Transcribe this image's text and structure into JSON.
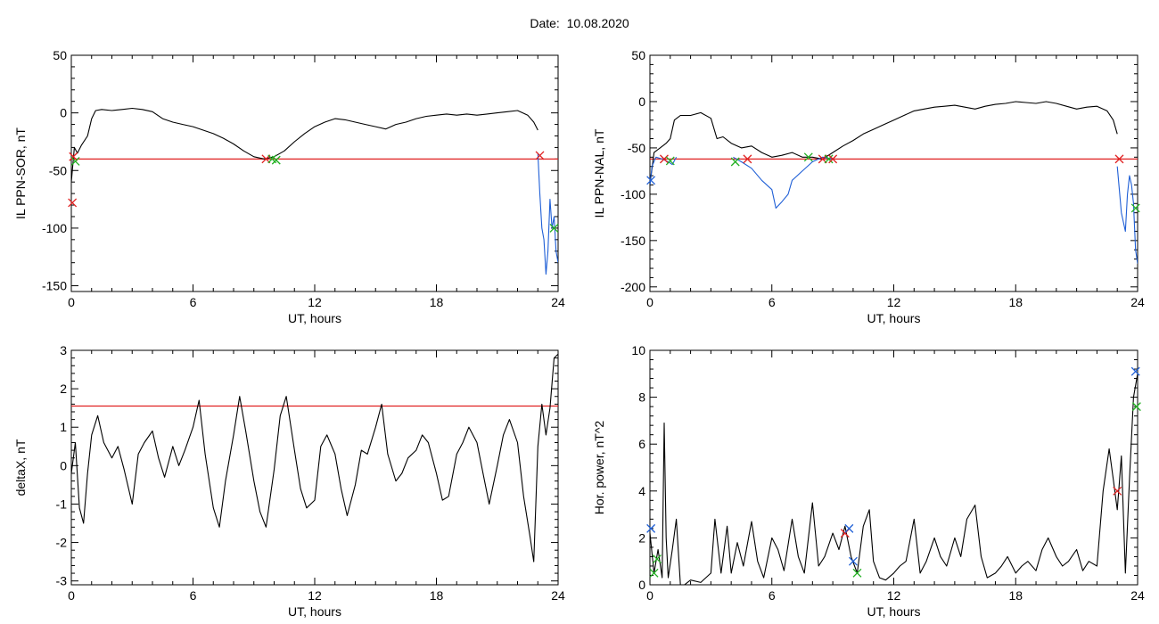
{
  "figure": {
    "title": "Date:  10.08.2020"
  },
  "colors": {
    "trace": "#000000",
    "highlight": "#1f5fd6",
    "threshold": "#e02020",
    "marker_red": "#e02020",
    "marker_green": "#22b022",
    "marker_blue": "#3050e0"
  },
  "chart_data": [
    {
      "type": "line",
      "xlabel": "UT, hours",
      "ylabel": "IL PPN-SOR, nT",
      "xlim": [
        0,
        24
      ],
      "ylim": [
        -155,
        50
      ],
      "xticks": [
        0,
        6,
        12,
        18,
        24
      ],
      "yticks": [
        50,
        0,
        -50,
        -100,
        -150
      ],
      "threshold": -40,
      "series": [
        {
          "color": "black",
          "x": [
            0,
            0.15,
            0.3,
            0.5,
            0.8,
            1,
            1.2,
            1.5,
            2,
            2.5,
            3,
            3.5,
            4,
            4.5,
            5,
            5.5,
            6,
            6.5,
            7,
            7.5,
            8,
            8.5,
            9,
            9.5,
            10,
            10.5,
            11,
            11.5,
            12,
            12.5,
            13,
            13.5,
            14,
            14.5,
            15,
            15.5,
            16,
            16.5,
            17,
            17.5,
            18,
            18.5,
            19,
            19.5,
            20,
            20.5,
            21,
            21.5,
            22,
            22.5,
            22.8,
            23
          ],
          "y": [
            -60,
            -30,
            -35,
            -28,
            -20,
            -5,
            2,
            3,
            2,
            3,
            4,
            3,
            1,
            -5,
            -8,
            -10,
            -12,
            -15,
            -18,
            -22,
            -27,
            -33,
            -38,
            -40,
            -38,
            -33,
            -25,
            -18,
            -12,
            -8,
            -5,
            -6,
            -8,
            -10,
            -12,
            -14,
            -10,
            -8,
            -5,
            -3,
            -2,
            -1,
            -2,
            -1,
            -2,
            -1,
            0,
            1,
            2,
            -2,
            -8,
            -15
          ]
        },
        {
          "color": "blue",
          "x": [
            23,
            23.1,
            23.2,
            23.3,
            23.4,
            23.5,
            23.6,
            23.7,
            23.8,
            23.9,
            24
          ],
          "y": [
            -35,
            -70,
            -100,
            -110,
            -140,
            -120,
            -75,
            -100,
            -90,
            -120,
            -130
          ]
        }
      ],
      "markers": [
        {
          "symbol": "x",
          "color": "red",
          "x": 0.05,
          "y": -78
        },
        {
          "symbol": "x",
          "color": "red",
          "x": 0.1,
          "y": -38
        },
        {
          "symbol": "x",
          "color": "green",
          "x": 0.2,
          "y": -42
        },
        {
          "symbol": "x",
          "color": "red",
          "x": 9.6,
          "y": -40
        },
        {
          "symbol": "x",
          "color": "green",
          "x": 9.9,
          "y": -40
        },
        {
          "symbol": "x",
          "color": "green",
          "x": 10.1,
          "y": -41
        },
        {
          "symbol": "x",
          "color": "red",
          "x": 23.1,
          "y": -37
        },
        {
          "symbol": "x",
          "color": "green",
          "x": 23.8,
          "y": -100
        }
      ]
    },
    {
      "type": "line",
      "xlabel": "UT, hours",
      "ylabel": "IL PPN-NAL, nT",
      "xlim": [
        0,
        24
      ],
      "ylim": [
        -205,
        50
      ],
      "xticks": [
        0,
        6,
        12,
        18,
        24
      ],
      "yticks": [
        50,
        0,
        -50,
        -100,
        -150,
        -200
      ],
      "threshold": -62,
      "series": [
        {
          "color": "black",
          "x": [
            0,
            0.2,
            0.5,
            0.8,
            1,
            1.2,
            1.5,
            2,
            2.5,
            3,
            3.3,
            3.6,
            4,
            4.5,
            5,
            5.5,
            6,
            6.5,
            7,
            7.5,
            8,
            8.5,
            9,
            9.5,
            10,
            10.5,
            11,
            11.5,
            12,
            12.5,
            13,
            13.5,
            14,
            14.5,
            15,
            15.5,
            16,
            16.5,
            17,
            17.5,
            18,
            18.5,
            19,
            19.5,
            20,
            20.5,
            21,
            21.5,
            22,
            22.5,
            22.8,
            23
          ],
          "y": [
            -90,
            -55,
            -50,
            -45,
            -40,
            -20,
            -15,
            -15,
            -12,
            -18,
            -40,
            -38,
            -45,
            -50,
            -48,
            -55,
            -60,
            -58,
            -55,
            -60,
            -60,
            -62,
            -55,
            -48,
            -42,
            -35,
            -30,
            -25,
            -20,
            -15,
            -10,
            -8,
            -6,
            -5,
            -4,
            -6,
            -8,
            -5,
            -3,
            -2,
            0,
            -1,
            -2,
            0,
            -2,
            -5,
            -8,
            -6,
            -5,
            -10,
            -20,
            -35
          ]
        },
        {
          "color": "blue",
          "x": [
            0,
            0.1,
            0.3,
            0.6,
            0.9,
            1.1,
            1.3
          ],
          "y": [
            -90,
            -70,
            -60,
            -62,
            -65,
            -68,
            -60
          ]
        },
        {
          "color": "blue",
          "x": [
            4.1,
            4.5,
            5,
            5.5,
            6,
            6.2,
            6.5,
            6.8,
            7,
            7.5,
            8,
            8.5,
            9
          ],
          "y": [
            -60,
            -65,
            -72,
            -85,
            -95,
            -115,
            -108,
            -100,
            -85,
            -75,
            -65,
            -60,
            -62
          ]
        },
        {
          "color": "blue",
          "x": [
            23,
            23.2,
            23.4,
            23.5,
            23.6,
            23.7,
            23.8,
            23.9,
            24
          ],
          "y": [
            -70,
            -120,
            -140,
            -100,
            -80,
            -90,
            -110,
            -160,
            -175
          ]
        }
      ],
      "markers": [
        {
          "symbol": "x",
          "color": "blue",
          "x": 0.05,
          "y": -85
        },
        {
          "symbol": "x",
          "color": "red",
          "x": 0.7,
          "y": -62
        },
        {
          "symbol": "x",
          "color": "green",
          "x": 1.0,
          "y": -64
        },
        {
          "symbol": "x",
          "color": "green",
          "x": 4.2,
          "y": -65
        },
        {
          "symbol": "x",
          "color": "red",
          "x": 4.8,
          "y": -62
        },
        {
          "symbol": "x",
          "color": "green",
          "x": 7.8,
          "y": -60
        },
        {
          "symbol": "x",
          "color": "red",
          "x": 8.5,
          "y": -62
        },
        {
          "symbol": "x",
          "color": "green",
          "x": 8.8,
          "y": -62
        },
        {
          "symbol": "x",
          "color": "red",
          "x": 9.0,
          "y": -62
        },
        {
          "symbol": "x",
          "color": "red",
          "x": 23.1,
          "y": -62
        },
        {
          "symbol": "x",
          "color": "green",
          "x": 23.9,
          "y": -115
        }
      ]
    },
    {
      "type": "line",
      "xlabel": "UT, hours",
      "ylabel": "deltaX, nT",
      "xlim": [
        0,
        24
      ],
      "ylim": [
        -3.1,
        3
      ],
      "xticks": [
        0,
        6,
        12,
        18,
        24
      ],
      "yticks": [
        3,
        2,
        1,
        0,
        -1,
        -2,
        -3
      ],
      "threshold": 1.55,
      "series": [
        {
          "color": "black",
          "x": [
            0,
            0.2,
            0.4,
            0.6,
            0.8,
            1,
            1.3,
            1.6,
            2,
            2.3,
            2.6,
            3,
            3.3,
            3.6,
            4,
            4.3,
            4.6,
            5,
            5.3,
            5.6,
            6,
            6.3,
            6.6,
            7,
            7.3,
            7.6,
            8,
            8.3,
            8.6,
            9,
            9.3,
            9.6,
            10,
            10.3,
            10.6,
            11,
            11.3,
            11.6,
            12,
            12.3,
            12.6,
            13,
            13.3,
            13.6,
            14,
            14.3,
            14.6,
            15,
            15.3,
            15.6,
            16,
            16.3,
            16.6,
            17,
            17.3,
            17.6,
            18,
            18.3,
            18.6,
            19,
            19.3,
            19.6,
            20,
            20.3,
            20.6,
            21,
            21.3,
            21.6,
            22,
            22.3,
            22.6,
            22.8,
            23,
            23.2,
            23.4,
            23.6,
            23.8,
            24
          ],
          "y": [
            -0.2,
            0.6,
            -1.1,
            -1.5,
            -0.2,
            0.8,
            1.3,
            0.6,
            0.2,
            0.5,
            -0.1,
            -1.0,
            0.3,
            0.6,
            0.9,
            0.2,
            -0.3,
            0.5,
            0.0,
            0.4,
            1.0,
            1.7,
            0.3,
            -1.1,
            -1.6,
            -0.4,
            0.8,
            1.8,
            0.9,
            -0.4,
            -1.2,
            -1.6,
            -0.1,
            1.3,
            1.8,
            0.4,
            -0.6,
            -1.1,
            -0.9,
            0.5,
            0.8,
            0.3,
            -0.6,
            -1.3,
            -0.5,
            0.4,
            0.3,
            1.0,
            1.6,
            0.3,
            -0.4,
            -0.2,
            0.2,
            0.4,
            0.8,
            0.6,
            -0.2,
            -0.9,
            -0.8,
            0.3,
            0.6,
            1.0,
            0.6,
            -0.2,
            -1.0,
            0.0,
            0.8,
            1.2,
            0.6,
            -0.8,
            -1.8,
            -2.5,
            0.5,
            1.6,
            0.8,
            1.5,
            2.8,
            2.9
          ]
        }
      ],
      "markers": []
    },
    {
      "type": "line",
      "xlabel": "UT, hours",
      "ylabel": "Hor. power, nT^2",
      "xlim": [
        0,
        24
      ],
      "ylim": [
        0,
        10
      ],
      "xticks": [
        0,
        6,
        12,
        18,
        24
      ],
      "yticks": [
        10,
        8,
        6,
        4,
        2,
        0
      ],
      "threshold": null,
      "series": [
        {
          "color": "black",
          "x": [
            0,
            0.2,
            0.4,
            0.6,
            0.7,
            0.8,
            0.9,
            1.1,
            1.3,
            1.5,
            1.7,
            2,
            2.5,
            3,
            3.2,
            3.5,
            3.8,
            4,
            4.3,
            4.6,
            5,
            5.3,
            5.6,
            6,
            6.3,
            6.6,
            7,
            7.3,
            7.6,
            8,
            8.3,
            8.6,
            9,
            9.3,
            9.6,
            9.9,
            10.2,
            10.5,
            10.8,
            11,
            11.3,
            11.6,
            12,
            12.3,
            12.6,
            13,
            13.3,
            13.6,
            14,
            14.3,
            14.6,
            15,
            15.3,
            15.6,
            16,
            16.3,
            16.6,
            17,
            17.3,
            17.6,
            18,
            18.3,
            18.6,
            19,
            19.3,
            19.6,
            20,
            20.3,
            20.6,
            21,
            21.3,
            21.6,
            22,
            22.3,
            22.6,
            22.8,
            23,
            23.2,
            23.4,
            23.6,
            23.8,
            24
          ],
          "y": [
            2.2,
            0.5,
            1.5,
            0.3,
            6.9,
            2.0,
            0.3,
            1.5,
            2.8,
            0.0,
            0.0,
            0.2,
            0.1,
            0.5,
            2.8,
            0.5,
            2.5,
            0.5,
            1.8,
            0.8,
            2.7,
            1.0,
            0.3,
            2.0,
            1.5,
            0.6,
            2.8,
            1.2,
            0.5,
            3.5,
            0.8,
            1.2,
            2.2,
            1.5,
            2.5,
            1.2,
            0.5,
            2.5,
            3.2,
            1.0,
            0.3,
            0.2,
            0.5,
            0.8,
            1.0,
            2.8,
            0.5,
            1.0,
            2.0,
            1.2,
            0.8,
            2.0,
            1.2,
            2.8,
            3.4,
            1.2,
            0.3,
            0.5,
            0.8,
            1.2,
            0.5,
            0.8,
            1.0,
            0.6,
            1.5,
            2.0,
            1.2,
            0.8,
            1.0,
            1.5,
            0.6,
            1.0,
            0.8,
            4.0,
            5.8,
            4.5,
            3.2,
            5.5,
            0.5,
            4.5,
            8.0,
            9.0
          ]
        }
      ],
      "markers": [
        {
          "symbol": "x",
          "color": "blue",
          "x": 0.05,
          "y": 2.4
        },
        {
          "symbol": "x",
          "color": "green",
          "x": 0.2,
          "y": 0.5
        },
        {
          "symbol": "x",
          "color": "green",
          "x": 0.35,
          "y": 1.1
        },
        {
          "symbol": "x",
          "color": "red",
          "x": 9.6,
          "y": 2.2
        },
        {
          "symbol": "x",
          "color": "blue",
          "x": 9.8,
          "y": 2.4
        },
        {
          "symbol": "x",
          "color": "blue",
          "x": 10.0,
          "y": 1.0
        },
        {
          "symbol": "x",
          "color": "green",
          "x": 10.2,
          "y": 0.5
        },
        {
          "symbol": "x",
          "color": "red",
          "x": 23.0,
          "y": 4.0
        },
        {
          "symbol": "x",
          "color": "blue",
          "x": 23.9,
          "y": 9.1
        },
        {
          "symbol": "x",
          "color": "green",
          "x": 23.95,
          "y": 7.6
        }
      ]
    }
  ]
}
